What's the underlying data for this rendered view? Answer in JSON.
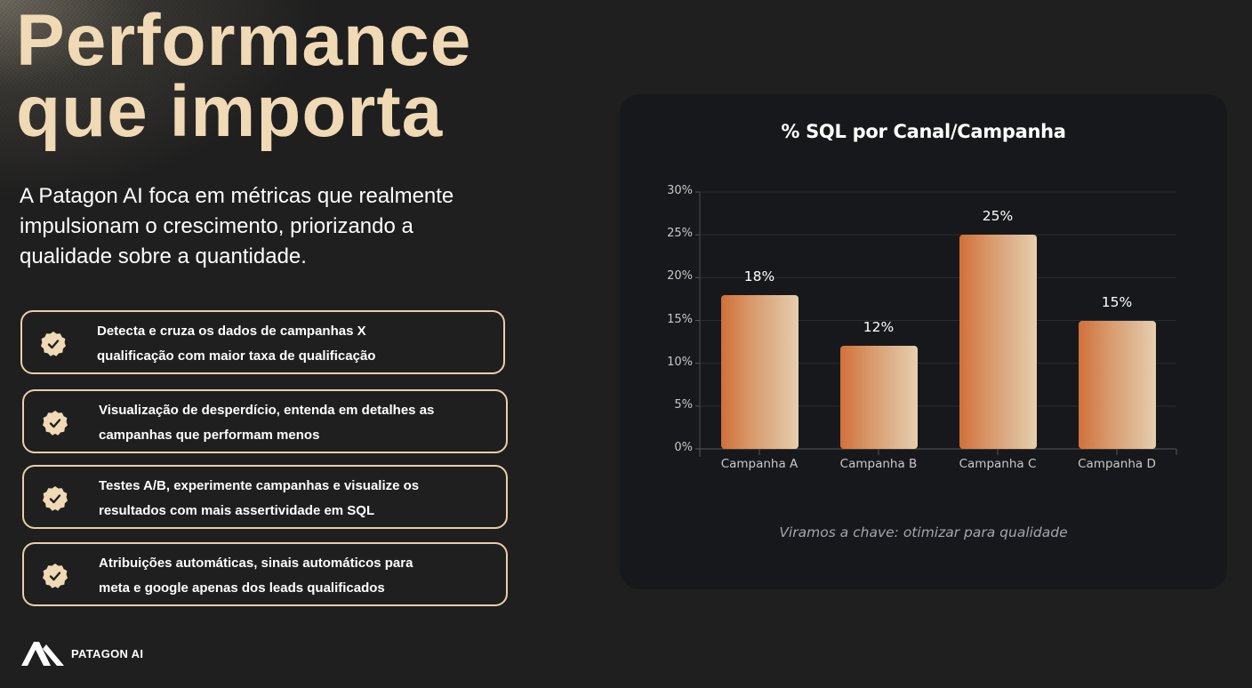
{
  "hero": {
    "title_line1": "Performance",
    "title_line2": "que importa",
    "subtitle": "A Patagon AI foca em métricas que realmente impulsionam o crescimento, priorizando a qualidade sobre a quantidade."
  },
  "features": [
    {
      "icon": "check-badge-icon",
      "line1": "Detecta e cruza os dados de campanhas X",
      "line2": "qualificação com maior taxa de qualificação"
    },
    {
      "icon": "check-badge-icon",
      "line1": "Visualização de desperdício, entenda em detalhes as",
      "line2": "campanhas que performam menos"
    },
    {
      "icon": "check-badge-icon",
      "line1": "Testes A/B, experimente campanhas e visualize os",
      "line2": "resultados com mais assertividade em SQL"
    },
    {
      "icon": "check-badge-icon",
      "line1": "Atribuições automáticas, sinais automáticos para",
      "line2": "meta e google apenas dos leads qualificados"
    }
  ],
  "logo": {
    "icon": "patagon-mountain-icon",
    "text": "PATAGON AI"
  },
  "colors": {
    "background": "#1f1f1f",
    "accent": "#f0d9b5",
    "card": "#17181b",
    "bar_gradient_start": "#d0703a",
    "bar_gradient_end": "#e6cfad"
  },
  "chart_card": {
    "title": "% SQL por Canal/Campanha",
    "caption": "Viramos a chave: otimizar para qualidade"
  },
  "chart_data": {
    "type": "bar",
    "title": "% SQL por Canal/Campanha",
    "categories": [
      "Campanha A",
      "Campanha B",
      "Campanha C",
      "Campanha D"
    ],
    "values": [
      18,
      12,
      25,
      15
    ],
    "value_labels": [
      "18%",
      "12%",
      "25%",
      "15%"
    ],
    "xlabel": "",
    "ylabel": "",
    "ylim": [
      0,
      30
    ],
    "yticks": [
      0,
      5,
      10,
      15,
      20,
      25,
      30
    ],
    "ytick_labels": [
      "0%",
      "5%",
      "10%",
      "15%",
      "20%",
      "25%",
      "30%"
    ],
    "grid": true,
    "legend": null,
    "annotation": "Viramos a chave: otimizar para qualidade"
  }
}
